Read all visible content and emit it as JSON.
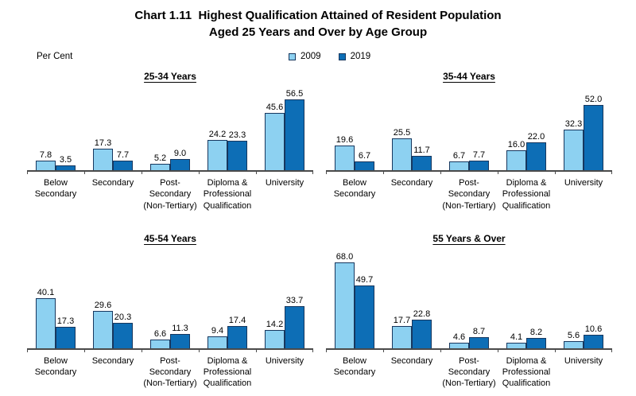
{
  "page": {
    "title_line1": "Chart 1.11  Highest Qualification Attained of Resident Population",
    "title_line2": "Aged 25 Years and Over by Age Group",
    "unit_label": "Per Cent"
  },
  "legend": {
    "position": "top-center",
    "items": [
      {
        "label": "2009",
        "color": "#8DD1F1"
      },
      {
        "label": "2019",
        "color": "#0D6EB6"
      }
    ]
  },
  "colors": {
    "series_2009": "#8DD1F1",
    "series_2019": "#0D6EB6",
    "bar_border": "#17375E",
    "axis": "#4a4a4a",
    "text": "#000000"
  },
  "chart_data": [
    {
      "type": "bar",
      "title": "25-34 Years",
      "ylabel": "Per Cent",
      "grid": false,
      "categories": [
        "Below Secondary",
        "Secondary",
        "Post-Secondary (Non-Tertiary)",
        "Diploma & Professional Qualification",
        "University"
      ],
      "category_lines": [
        [
          "Below",
          "Secondary"
        ],
        [
          "Secondary"
        ],
        [
          "Post-",
          "Secondary",
          "(Non-Tertiary)"
        ],
        [
          "Diploma &",
          "Professional",
          "Qualification"
        ],
        [
          "University"
        ]
      ],
      "series": [
        {
          "name": "2009",
          "values": [
            7.8,
            17.3,
            5.2,
            24.2,
            45.6
          ]
        },
        {
          "name": "2019",
          "values": [
            3.5,
            7.7,
            9.0,
            23.3,
            56.5
          ]
        }
      ]
    },
    {
      "type": "bar",
      "title": "35-44 Years",
      "ylabel": "Per Cent",
      "grid": false,
      "categories": [
        "Below Secondary",
        "Secondary",
        "Post-Secondary (Non-Tertiary)",
        "Diploma & Professional Qualification",
        "University"
      ],
      "category_lines": [
        [
          "Below",
          "Secondary"
        ],
        [
          "Secondary"
        ],
        [
          "Post-",
          "Secondary",
          "(Non-Tertiary)"
        ],
        [
          "Diploma &",
          "Professional",
          "Qualification"
        ],
        [
          "University"
        ]
      ],
      "series": [
        {
          "name": "2009",
          "values": [
            19.6,
            25.5,
            6.7,
            16.0,
            32.3
          ]
        },
        {
          "name": "2019",
          "values": [
            6.7,
            11.7,
            7.7,
            22.0,
            52.0
          ]
        }
      ]
    },
    {
      "type": "bar",
      "title": "45-54 Years",
      "ylabel": "Per Cent",
      "grid": false,
      "categories": [
        "Below Secondary",
        "Secondary",
        "Post-Secondary (Non-Tertiary)",
        "Diploma & Professional Qualification",
        "University"
      ],
      "category_lines": [
        [
          "Below",
          "Secondary"
        ],
        [
          "Secondary"
        ],
        [
          "Post-",
          "Secondary",
          "(Non-Tertiary)"
        ],
        [
          "Diploma &",
          "Professional",
          "Qualification"
        ],
        [
          "University"
        ]
      ],
      "series": [
        {
          "name": "2009",
          "values": [
            40.1,
            29.6,
            6.6,
            9.4,
            14.2
          ]
        },
        {
          "name": "2019",
          "values": [
            17.3,
            20.3,
            11.3,
            17.4,
            33.7
          ]
        }
      ]
    },
    {
      "type": "bar",
      "title": "55 Years & Over",
      "ylabel": "Per Cent",
      "grid": false,
      "categories": [
        "Below Secondary",
        "Secondary",
        "Post-Secondary (Non-Tertiary)",
        "Diploma & Professional Qualification",
        "University"
      ],
      "category_lines": [
        [
          "Below",
          "Secondary"
        ],
        [
          "Secondary"
        ],
        [
          "Post-",
          "Secondary",
          "(Non-Tertiary)"
        ],
        [
          "Diploma &",
          "Professional",
          "Qualification"
        ],
        [
          "University"
        ]
      ],
      "series": [
        {
          "name": "2009",
          "values": [
            68.0,
            17.7,
            4.6,
            4.1,
            5.6
          ]
        },
        {
          "name": "2019",
          "values": [
            49.7,
            22.8,
            8.7,
            8.2,
            10.6
          ]
        }
      ]
    }
  ]
}
